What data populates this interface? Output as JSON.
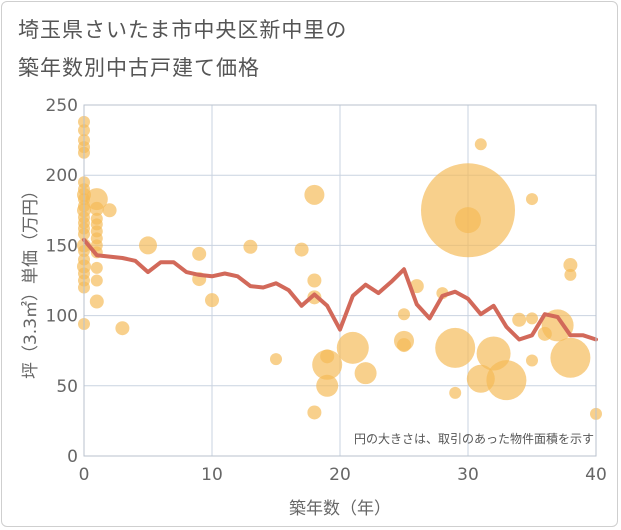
{
  "title_line1": "埼玉県さいたま市中央区新中里の",
  "title_line2": "築年数別中古戸建て価格",
  "note": "円の大きさは、取引のあった物件面積を示す",
  "colors": {
    "bubble": "#f5b955",
    "line": "#d2695a",
    "grid": "#c9d3e0",
    "plot_border": "#b9c2ce",
    "tick_text": "#666666"
  },
  "chart_data": {
    "type": "scatter",
    "title": "埼玉県さいたま市中央区新中里の築年数別中古戸建て価格",
    "xlabel": "築年数（年）",
    "ylabel": "坪（3.3㎡）単価（万円）",
    "xlim": [
      0,
      40
    ],
    "ylim": [
      0,
      250
    ],
    "xticks": [
      0,
      10,
      20,
      30,
      40
    ],
    "yticks": [
      0,
      50,
      100,
      150,
      200,
      250
    ],
    "grid": true,
    "bubbles": [
      {
        "x": 0,
        "y": 238,
        "s": 6
      },
      {
        "x": 0,
        "y": 232,
        "s": 6
      },
      {
        "x": 0,
        "y": 225,
        "s": 6
      },
      {
        "x": 0,
        "y": 220,
        "s": 6
      },
      {
        "x": 0,
        "y": 216,
        "s": 6
      },
      {
        "x": 0,
        "y": 195,
        "s": 6
      },
      {
        "x": 0,
        "y": 190,
        "s": 6
      },
      {
        "x": 0,
        "y": 186,
        "s": 7
      },
      {
        "x": 0,
        "y": 183,
        "s": 6
      },
      {
        "x": 0,
        "y": 178,
        "s": 6
      },
      {
        "x": 0,
        "y": 175,
        "s": 7
      },
      {
        "x": 0,
        "y": 170,
        "s": 6
      },
      {
        "x": 0,
        "y": 166,
        "s": 6
      },
      {
        "x": 0,
        "y": 162,
        "s": 6
      },
      {
        "x": 0,
        "y": 158,
        "s": 6
      },
      {
        "x": 0,
        "y": 150,
        "s": 7
      },
      {
        "x": 0,
        "y": 146,
        "s": 6
      },
      {
        "x": 0,
        "y": 140,
        "s": 6
      },
      {
        "x": 0,
        "y": 135,
        "s": 7
      },
      {
        "x": 0,
        "y": 130,
        "s": 6
      },
      {
        "x": 0,
        "y": 125,
        "s": 6
      },
      {
        "x": 0,
        "y": 120,
        "s": 6
      },
      {
        "x": 0,
        "y": 94,
        "s": 6
      },
      {
        "x": 1,
        "y": 183,
        "s": 11
      },
      {
        "x": 1,
        "y": 176,
        "s": 7
      },
      {
        "x": 1,
        "y": 169,
        "s": 6
      },
      {
        "x": 1,
        "y": 165,
        "s": 6
      },
      {
        "x": 1,
        "y": 160,
        "s": 6
      },
      {
        "x": 1,
        "y": 155,
        "s": 6
      },
      {
        "x": 1,
        "y": 150,
        "s": 6
      },
      {
        "x": 1,
        "y": 145,
        "s": 6
      },
      {
        "x": 1,
        "y": 134,
        "s": 6
      },
      {
        "x": 1,
        "y": 125,
        "s": 6
      },
      {
        "x": 1,
        "y": 110,
        "s": 7
      },
      {
        "x": 2,
        "y": 175,
        "s": 7
      },
      {
        "x": 3,
        "y": 91,
        "s": 7
      },
      {
        "x": 5,
        "y": 150,
        "s": 9
      },
      {
        "x": 9,
        "y": 144,
        "s": 7
      },
      {
        "x": 9,
        "y": 126,
        "s": 7
      },
      {
        "x": 10,
        "y": 111,
        "s": 7
      },
      {
        "x": 13,
        "y": 149,
        "s": 7
      },
      {
        "x": 15,
        "y": 69,
        "s": 6
      },
      {
        "x": 17,
        "y": 147,
        "s": 7
      },
      {
        "x": 18,
        "y": 186,
        "s": 10
      },
      {
        "x": 18,
        "y": 125,
        "s": 7
      },
      {
        "x": 18,
        "y": 113,
        "s": 7
      },
      {
        "x": 18,
        "y": 31,
        "s": 7
      },
      {
        "x": 19,
        "y": 71,
        "s": 7
      },
      {
        "x": 19,
        "y": 65,
        "s": 15
      },
      {
        "x": 19,
        "y": 50,
        "s": 11
      },
      {
        "x": 21,
        "y": 77,
        "s": 16
      },
      {
        "x": 22,
        "y": 59,
        "s": 11
      },
      {
        "x": 25,
        "y": 101,
        "s": 6
      },
      {
        "x": 25,
        "y": 82,
        "s": 10
      },
      {
        "x": 25,
        "y": 79,
        "s": 7
      },
      {
        "x": 26,
        "y": 121,
        "s": 7
      },
      {
        "x": 28,
        "y": 116,
        "s": 6
      },
      {
        "x": 29,
        "y": 77,
        "s": 20
      },
      {
        "x": 29,
        "y": 45,
        "s": 6
      },
      {
        "x": 30,
        "y": 175,
        "s": 47
      },
      {
        "x": 30,
        "y": 168,
        "s": 13
      },
      {
        "x": 31,
        "y": 222,
        "s": 6
      },
      {
        "x": 31,
        "y": 55,
        "s": 14
      },
      {
        "x": 32,
        "y": 73,
        "s": 17
      },
      {
        "x": 33,
        "y": 54,
        "s": 20
      },
      {
        "x": 34,
        "y": 97,
        "s": 7
      },
      {
        "x": 35,
        "y": 183,
        "s": 6
      },
      {
        "x": 35,
        "y": 98,
        "s": 6
      },
      {
        "x": 35,
        "y": 68,
        "s": 6
      },
      {
        "x": 36,
        "y": 87,
        "s": 7
      },
      {
        "x": 37,
        "y": 93,
        "s": 16
      },
      {
        "x": 38,
        "y": 136,
        "s": 7
      },
      {
        "x": 38,
        "y": 129,
        "s": 6
      },
      {
        "x": 38,
        "y": 70,
        "s": 20
      },
      {
        "x": 40,
        "y": 30,
        "s": 6
      }
    ],
    "series": [
      {
        "x": [
          0,
          1,
          2,
          3,
          4,
          5,
          6,
          7,
          8,
          9,
          10,
          11,
          12,
          13,
          14,
          15,
          16,
          17,
          18,
          19,
          20,
          21,
          22,
          23,
          24,
          25,
          26,
          27,
          28,
          29,
          30,
          31,
          32,
          33,
          34,
          35,
          36,
          37,
          38,
          39,
          40
        ],
        "values": [
          154,
          143,
          142,
          141,
          139,
          131,
          138,
          138,
          131,
          129,
          128,
          130,
          128,
          121,
          120,
          123,
          118,
          107,
          115,
          107,
          90,
          114,
          122,
          116,
          124,
          133,
          108,
          98,
          114,
          117,
          112,
          101,
          107,
          92,
          83,
          86,
          101,
          99,
          86,
          86,
          83
        ]
      }
    ]
  }
}
